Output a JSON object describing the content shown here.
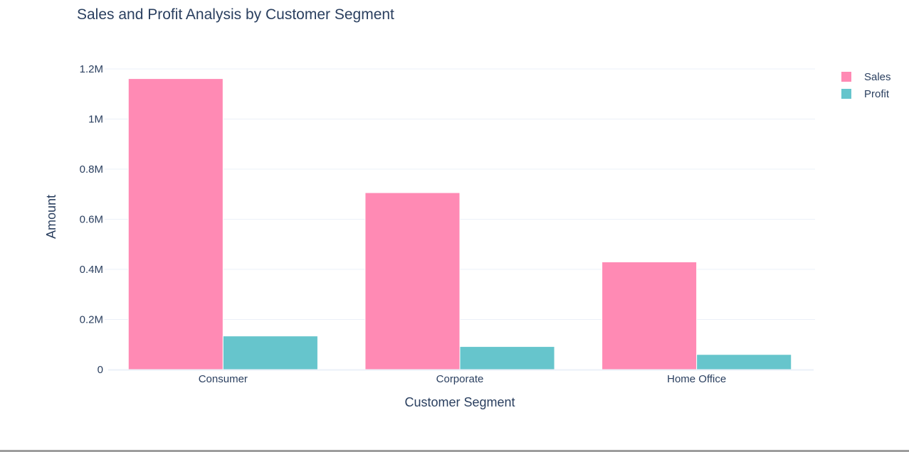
{
  "chart_data": {
    "type": "bar",
    "title": "Sales and Profit Analysis by Customer Segment",
    "xlabel": "Customer Segment",
    "ylabel": "Amount",
    "categories": [
      "Consumer",
      "Corporate",
      "Home Office"
    ],
    "series": [
      {
        "name": "Sales",
        "color": "#ff8ab4",
        "values": [
          1161401,
          706146,
          429653
        ]
      },
      {
        "name": "Profit",
        "color": "#66c5cc",
        "values": [
          134119,
          91979,
          60299
        ]
      }
    ],
    "ylim": [
      0,
      1200000
    ],
    "yticks": [
      {
        "value": 0,
        "label": "0"
      },
      {
        "value": 200000,
        "label": "0.2M"
      },
      {
        "value": 400000,
        "label": "0.4M"
      },
      {
        "value": 600000,
        "label": "0.6M"
      },
      {
        "value": 800000,
        "label": "0.8M"
      },
      {
        "value": 1000000,
        "label": "1M"
      },
      {
        "value": 1200000,
        "label": "1.2M"
      }
    ],
    "grid": true,
    "legend_position": "top-right"
  }
}
